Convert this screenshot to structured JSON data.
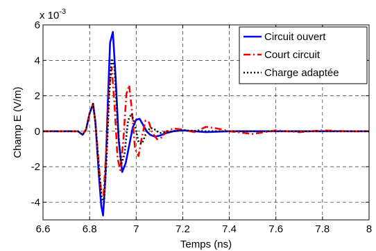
{
  "chart_data": {
    "type": "line",
    "xlabel": "Temps (ns)",
    "ylabel": "Champ E (V/m)",
    "y_multiplier": "x 10",
    "y_exponent": "-3",
    "xlim": [
      6.6,
      8.0
    ],
    "ylim": [
      -5,
      6
    ],
    "xticks": [
      "6.6",
      "6.8",
      "7",
      "7.2",
      "7.4",
      "7.6",
      "7.8",
      "8"
    ],
    "yticks": [
      "-4",
      "-2",
      "0",
      "2",
      "4",
      "6"
    ],
    "grid": true,
    "legend_position": "top-right",
    "series": [
      {
        "name": "Circuit ouvert",
        "color": "#0000ff",
        "style": "solid",
        "x": [
          6.6,
          6.75,
          6.77,
          6.785,
          6.8,
          6.815,
          6.825,
          6.84,
          6.85,
          6.858,
          6.868,
          6.878,
          6.888,
          6.9,
          6.912,
          6.925,
          6.94,
          6.955,
          6.97,
          6.985,
          7.0,
          7.015,
          7.03,
          7.045,
          7.06,
          7.08,
          7.1,
          7.13,
          7.16,
          7.2,
          7.25,
          7.3,
          7.4,
          7.6,
          7.8,
          8.0
        ],
        "y": [
          0.0,
          0.0,
          -0.2,
          0.1,
          1.0,
          1.55,
          0.5,
          -2.5,
          -4.2,
          -4.75,
          -2.5,
          1.5,
          5.0,
          5.6,
          3.0,
          -0.5,
          -2.3,
          -1.8,
          -0.8,
          0.2,
          0.65,
          0.7,
          0.35,
          0.0,
          -0.2,
          -0.3,
          -0.25,
          -0.1,
          0.0,
          0.05,
          0.0,
          -0.05,
          0.0,
          0.0,
          0.0,
          0.0
        ]
      },
      {
        "name": "Court circuit",
        "color": "#ff0000",
        "style": "dashdot",
        "x": [
          6.6,
          6.75,
          6.77,
          6.785,
          6.8,
          6.815,
          6.825,
          6.84,
          6.85,
          6.86,
          6.872,
          6.884,
          6.895,
          6.907,
          6.92,
          6.932,
          6.945,
          6.958,
          6.97,
          6.983,
          6.995,
          7.01,
          7.025,
          7.04,
          7.055,
          7.07,
          7.09,
          7.11,
          7.13,
          7.16,
          7.2,
          7.25,
          7.3,
          7.35,
          7.4,
          7.5,
          7.6,
          7.7,
          7.8,
          7.9,
          8.0
        ],
        "y": [
          0.0,
          0.0,
          -0.2,
          0.1,
          1.0,
          1.55,
          0.5,
          -2.0,
          -3.5,
          -3.6,
          -1.0,
          2.5,
          3.6,
          1.5,
          -1.5,
          -2.2,
          -0.5,
          2.1,
          2.6,
          1.0,
          -1.0,
          -1.4,
          -0.3,
          0.6,
          0.5,
          -0.1,
          -0.45,
          -0.35,
          0.0,
          0.15,
          0.1,
          -0.05,
          0.25,
          0.15,
          0.0,
          -0.15,
          0.05,
          -0.05,
          0.05,
          0.0,
          0.0
        ]
      },
      {
        "name": "Charge adaptée",
        "color": "#000000",
        "style": "dotted",
        "x": [
          6.6,
          6.75,
          6.77,
          6.785,
          6.8,
          6.815,
          6.825,
          6.84,
          6.852,
          6.862,
          6.873,
          6.884,
          6.895,
          6.907,
          6.92,
          6.935,
          6.95,
          6.965,
          6.98,
          6.995,
          7.01,
          7.025,
          7.04,
          7.06,
          7.08,
          7.1,
          7.13,
          7.16,
          7.2,
          7.3,
          7.5,
          7.7,
          8.0
        ],
        "y": [
          0.0,
          0.0,
          -0.2,
          0.1,
          1.0,
          1.55,
          0.5,
          -2.0,
          -3.8,
          -4.0,
          -1.5,
          2.0,
          4.1,
          3.6,
          0.5,
          -1.9,
          -1.3,
          0.6,
          1.0,
          0.3,
          -0.6,
          -0.7,
          -0.2,
          0.2,
          0.1,
          -0.1,
          -0.05,
          0.0,
          0.05,
          0.0,
          0.0,
          0.0,
          0.0
        ]
      }
    ]
  }
}
